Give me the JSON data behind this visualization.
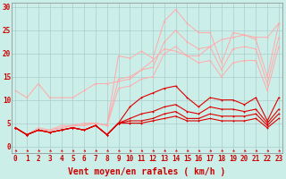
{
  "bg_color": "#cceee8",
  "grid_color": "#aacccc",
  "line_color_light": "#ffaaaa",
  "line_color_dark": "#dd0000",
  "xlabel": "Vent moyen/en rafales ( km/h )",
  "xlabel_color": "#cc0000",
  "yticks": [
    0,
    5,
    10,
    15,
    20,
    25,
    30
  ],
  "xticks": [
    0,
    1,
    2,
    3,
    4,
    5,
    6,
    7,
    8,
    9,
    10,
    11,
    12,
    13,
    14,
    15,
    16,
    17,
    18,
    19,
    20,
    21,
    22,
    23
  ],
  "xlim": [
    -0.3,
    23.3
  ],
  "ylim": [
    -1.5,
    31
  ],
  "series_light": [
    [
      4.0,
      2.5,
      4.0,
      3.5,
      4.5,
      4.5,
      5.0,
      5.0,
      4.5,
      19.5,
      19.0,
      20.5,
      19.0,
      27.0,
      29.5,
      26.5,
      24.5,
      24.5,
      18.0,
      24.5,
      24.0,
      23.0,
      15.0,
      26.5
    ],
    [
      12.0,
      10.5,
      13.5,
      10.5,
      10.5,
      10.5,
      12.0,
      13.5,
      13.5,
      14.0,
      14.5,
      16.5,
      18.5,
      21.0,
      20.5,
      19.5,
      19.5,
      21.5,
      23.0,
      23.5,
      24.0,
      23.5,
      23.5,
      26.5
    ],
    [
      4.0,
      2.5,
      3.5,
      3.5,
      4.0,
      4.5,
      4.5,
      5.0,
      4.5,
      14.5,
      15.0,
      16.5,
      17.0,
      22.5,
      25.0,
      22.5,
      21.0,
      21.5,
      16.5,
      21.0,
      21.5,
      21.0,
      13.5,
      23.5
    ],
    [
      4.0,
      2.5,
      3.5,
      3.5,
      4.0,
      4.5,
      4.5,
      5.0,
      4.5,
      12.5,
      13.0,
      14.5,
      15.0,
      20.0,
      21.5,
      19.5,
      18.0,
      18.5,
      15.0,
      18.0,
      18.5,
      18.5,
      12.0,
      21.5
    ]
  ],
  "series_dark": [
    [
      4.0,
      2.5,
      3.5,
      3.0,
      3.5,
      4.0,
      3.5,
      4.5,
      2.5,
      5.0,
      8.5,
      10.5,
      11.5,
      12.5,
      13.0,
      10.5,
      8.5,
      10.5,
      10.0,
      10.0,
      9.0,
      10.5,
      5.5,
      10.5
    ],
    [
      4.0,
      2.5,
      3.5,
      3.0,
      3.5,
      4.0,
      3.5,
      4.5,
      2.5,
      5.0,
      6.0,
      7.0,
      7.5,
      8.5,
      9.0,
      7.5,
      7.0,
      8.5,
      8.0,
      8.0,
      7.5,
      8.0,
      5.0,
      8.0
    ],
    [
      4.0,
      2.5,
      3.5,
      3.0,
      3.5,
      4.0,
      3.5,
      4.5,
      2.5,
      5.0,
      5.5,
      5.5,
      6.0,
      7.0,
      7.5,
      6.0,
      6.0,
      7.0,
      6.5,
      6.5,
      6.5,
      7.0,
      4.5,
      7.0
    ],
    [
      4.0,
      2.5,
      3.5,
      3.0,
      3.5,
      4.0,
      3.5,
      4.5,
      2.5,
      5.0,
      5.0,
      5.0,
      5.5,
      6.0,
      6.5,
      5.5,
      5.5,
      6.0,
      5.5,
      5.5,
      5.5,
      6.0,
      4.0,
      6.0
    ]
  ],
  "tick_label_color": "#cc0000",
  "tick_label_size": 5.5,
  "xlabel_size": 7.0
}
